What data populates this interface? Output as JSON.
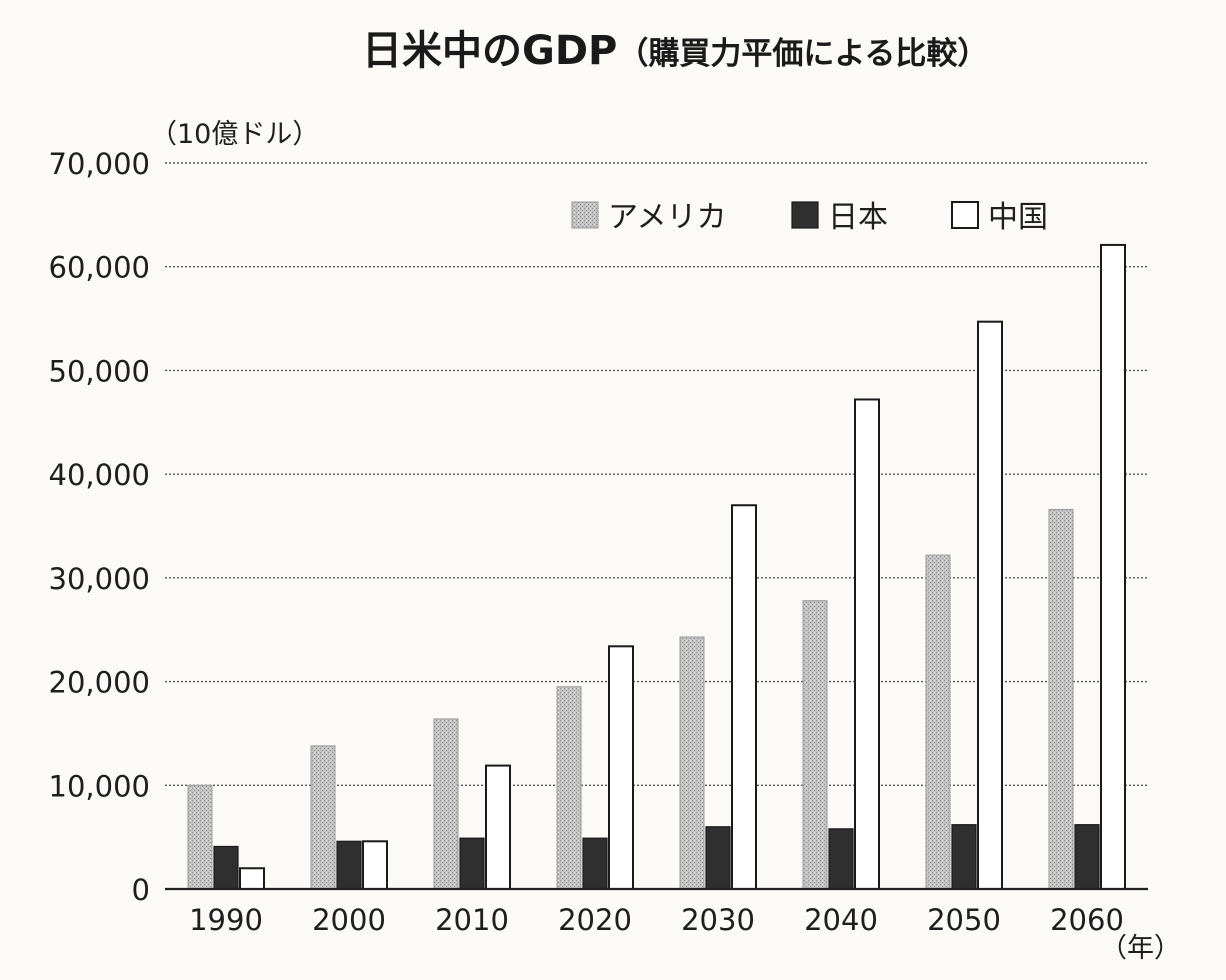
{
  "chart_data": {
    "type": "bar",
    "title": "日米中のGDP",
    "subtitle": "（購買力平価による比較）",
    "ylabel": "（10億ドル）",
    "xlabel": "（年）",
    "ylim": [
      0,
      70000
    ],
    "yticks": [
      0,
      10000,
      20000,
      30000,
      40000,
      50000,
      60000,
      70000
    ],
    "ytick_labels": [
      "0",
      "10,000",
      "20,000",
      "30,000",
      "40,000",
      "50,000",
      "60,000",
      "70,000"
    ],
    "grid": true,
    "legend_position": "top-right",
    "categories": [
      "1990",
      "2000",
      "2010",
      "2020",
      "2030",
      "2040",
      "2050",
      "2060"
    ],
    "series": [
      {
        "name": "アメリカ",
        "color": "#b8b8b8",
        "values": [
          10000,
          13800,
          16400,
          19500,
          24300,
          27800,
          32200,
          36600
        ]
      },
      {
        "name": "日本",
        "color": "#2f2f2f",
        "values": [
          4100,
          4600,
          4900,
          4900,
          6000,
          5800,
          6200,
          6200
        ]
      },
      {
        "name": "中国",
        "color": "#ffffff",
        "values": [
          2000,
          4600,
          11900,
          23400,
          37000,
          47200,
          54700,
          62100
        ]
      }
    ]
  }
}
